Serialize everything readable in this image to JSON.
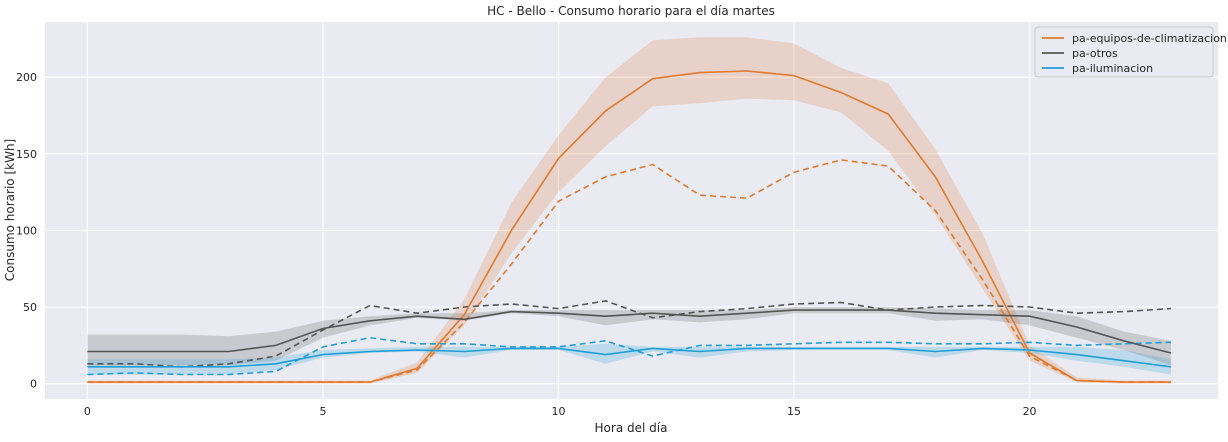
{
  "chart_data": {
    "type": "line",
    "title": "HC - Bello - Consumo horario para el día martes",
    "xlabel": "Hora del día",
    "ylabel": "Consumo horario [kWh]",
    "xlim": [
      -0.9,
      24.0
    ],
    "ylim": [
      -10,
      236
    ],
    "xticks": [
      0,
      5,
      10,
      15,
      20
    ],
    "yticks": [
      0,
      50,
      100,
      150,
      200
    ],
    "grid": true,
    "legend_position": "top-right",
    "x": [
      0,
      1,
      2,
      3,
      4,
      5,
      6,
      7,
      8,
      9,
      10,
      11,
      12,
      13,
      14,
      15,
      16,
      17,
      18,
      19,
      20,
      21,
      22,
      23
    ],
    "series": [
      {
        "name": "pa-equipos-de-climatizacion",
        "color": "#e07b30",
        "mean": [
          1,
          1,
          1,
          1,
          1,
          1,
          1,
          10,
          45,
          100,
          147,
          178,
          199,
          203,
          204,
          201,
          190,
          176,
          135,
          80,
          20,
          2,
          1,
          1
        ],
        "lower": [
          0,
          0,
          0,
          0,
          0,
          0,
          0,
          7,
          38,
          85,
          125,
          155,
          181,
          183,
          186,
          185,
          177,
          152,
          110,
          62,
          15,
          1,
          0,
          0
        ],
        "upper": [
          2,
          2,
          2,
          2,
          2,
          2,
          2,
          14,
          55,
          118,
          162,
          200,
          224,
          226,
          226,
          222,
          206,
          196,
          153,
          98,
          25,
          4,
          2,
          2
        ],
        "dashed": [
          1,
          1,
          1,
          1,
          1,
          1,
          1,
          9,
          40,
          78,
          119,
          135,
          143,
          123,
          121,
          138,
          146,
          142,
          113,
          68,
          18,
          2,
          1,
          1
        ]
      },
      {
        "name": "pa-otros",
        "color": "#555555",
        "mean": [
          21,
          21,
          21,
          21,
          25,
          36,
          41,
          44,
          42,
          47,
          46,
          44,
          46,
          44,
          46,
          48,
          48,
          48,
          46,
          45,
          44,
          37,
          28,
          20
        ],
        "lower": [
          12,
          12,
          12,
          12,
          15,
          30,
          38,
          43,
          41,
          46,
          44,
          38,
          42,
          40,
          42,
          46,
          46,
          46,
          41,
          42,
          38,
          30,
          22,
          12
        ],
        "upper": [
          32,
          32,
          32,
          31,
          34,
          41,
          44,
          46,
          46,
          48,
          48,
          48,
          48,
          48,
          48,
          50,
          50,
          50,
          49,
          48,
          48,
          44,
          34,
          28
        ],
        "dashed": [
          13,
          13,
          11,
          13,
          18,
          35,
          51,
          46,
          50,
          52,
          49,
          54,
          43,
          47,
          49,
          52,
          53,
          48,
          50,
          51,
          50,
          46,
          47,
          49
        ]
      },
      {
        "name": "pa-iluminacion",
        "color": "#1f9fd8",
        "mean": [
          11,
          11,
          11,
          11,
          13,
          19,
          21,
          22,
          21,
          23,
          23,
          19,
          23,
          21,
          23,
          23,
          23,
          23,
          21,
          23,
          22,
          19,
          15,
          11
        ],
        "lower": [
          6,
          6,
          6,
          6,
          9,
          17,
          20,
          21,
          17,
          22,
          22,
          13,
          21,
          17,
          21,
          22,
          22,
          22,
          17,
          22,
          20,
          15,
          11,
          6
        ],
        "upper": [
          16,
          16,
          16,
          16,
          17,
          22,
          23,
          24,
          24,
          24,
          24,
          26,
          24,
          24,
          24,
          24,
          24,
          24,
          24,
          24,
          24,
          24,
          22,
          16
        ],
        "dashed": [
          6,
          7,
          6,
          6,
          8,
          24,
          30,
          26,
          26,
          24,
          24,
          28,
          18,
          25,
          25,
          26,
          27,
          27,
          26,
          26,
          27,
          25,
          26,
          27
        ]
      }
    ]
  }
}
